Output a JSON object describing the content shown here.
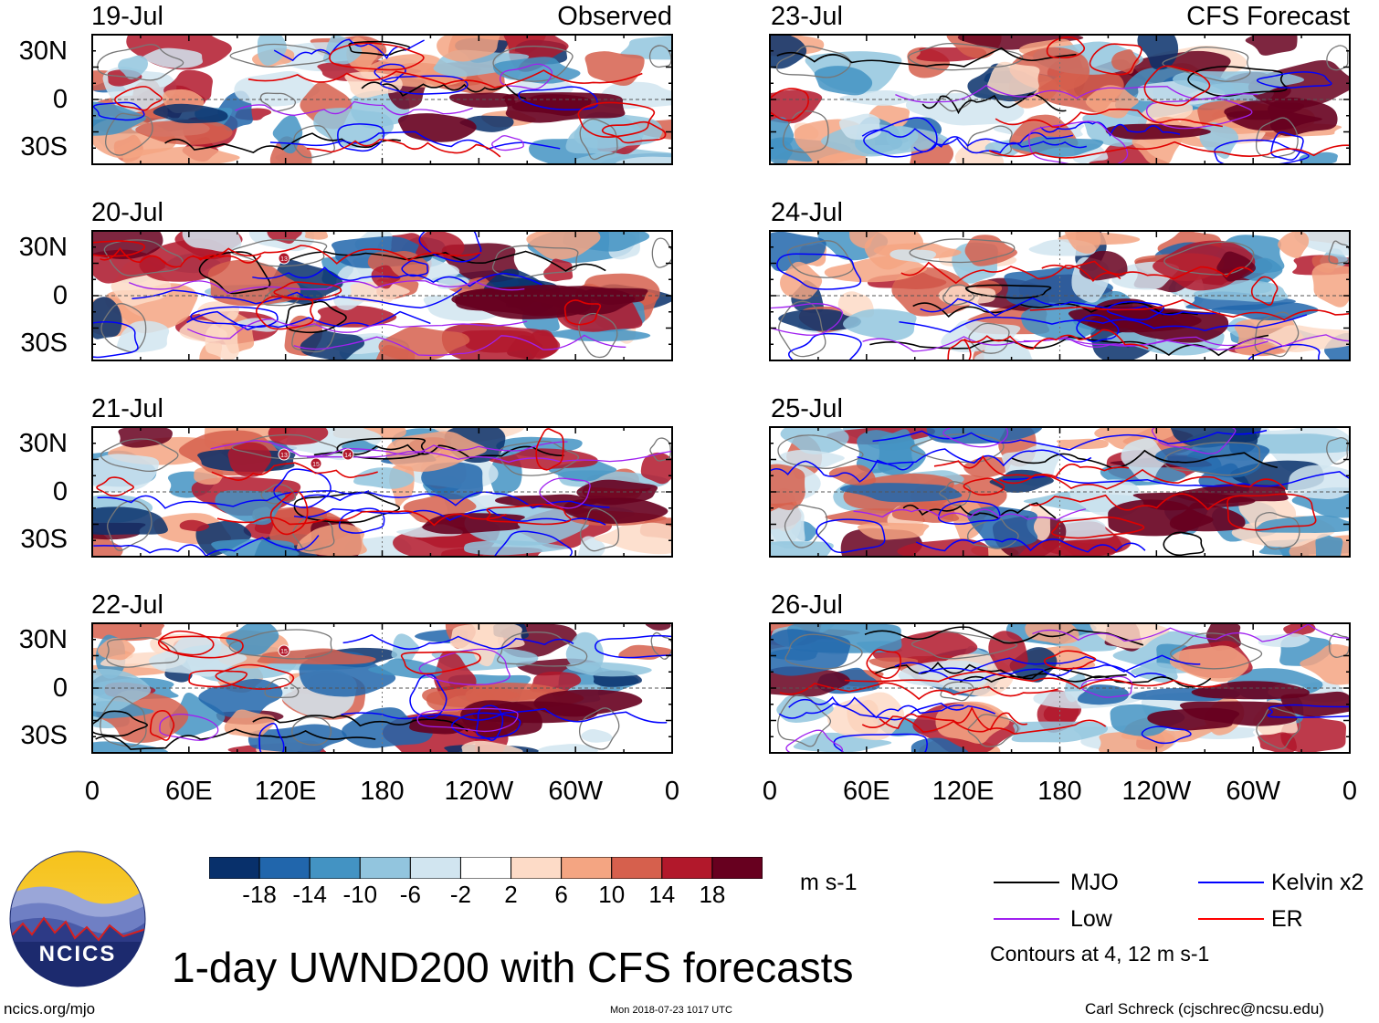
{
  "panels_left": {
    "header_right": "Observed",
    "dates": [
      "19-Jul",
      "20-Jul",
      "21-Jul",
      "22-Jul"
    ]
  },
  "panels_right": {
    "header_right": "CFS Forecast",
    "dates": [
      "23-Jul",
      "24-Jul",
      "25-Jul",
      "26-Jul"
    ]
  },
  "lat_labels": [
    "30N",
    "0",
    "30S"
  ],
  "lon_labels": [
    "0",
    "60E",
    "120E",
    "180",
    "120W",
    "60W",
    "0"
  ],
  "colorbar": {
    "colors": [
      "#08306b",
      "#2166ac",
      "#4393c3",
      "#92c5de",
      "#d1e5f0",
      "#ffffff",
      "#fddbc7",
      "#f4a582",
      "#d6604d",
      "#b2182b",
      "#67001f"
    ],
    "ticks": [
      "-18",
      "-14",
      "-10",
      "-6",
      "-2",
      "2",
      "6",
      "10",
      "14",
      "18"
    ],
    "units": "m s-1"
  },
  "legend": {
    "items": [
      {
        "label": "MJO",
        "color": "#000000"
      },
      {
        "label": "Kelvin x2",
        "color": "#0000ff"
      },
      {
        "label": "Low",
        "color": "#a020f0"
      },
      {
        "label": "ER",
        "color": "#ff0000"
      }
    ],
    "note": "Contours at 4, 12 m s-1"
  },
  "title": "1-day UWND200 with CFS forecasts",
  "footer": {
    "url": "ncics.org/mjo",
    "timestamp": "Mon 2018-07-23 1017 UTC",
    "author": "Carl Schreck (cjschrec@ncsu.edu)"
  },
  "logo_text": "NCICS",
  "storm_markers": [
    {
      "panel": "20-Jul",
      "label": "13"
    },
    {
      "panel": "21-Jul",
      "label": "13"
    },
    {
      "panel": "21-Jul",
      "label": "15"
    },
    {
      "panel": "21-Jul",
      "label": "14"
    },
    {
      "panel": "22-Jul",
      "label": "15"
    }
  ]
}
